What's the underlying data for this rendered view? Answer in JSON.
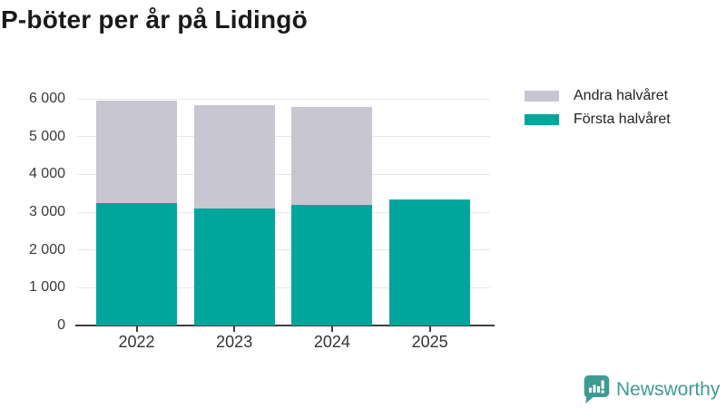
{
  "title": "P-böter per år på Lidingö",
  "legend": {
    "items": [
      {
        "label": "Andra halvåret",
        "color": "#c8c6d0"
      },
      {
        "label": "Första halvåret",
        "color": "#00a69c"
      }
    ]
  },
  "branding": {
    "logo_text": "Newsworthy",
    "logo_color": "#3e9b94"
  },
  "chart_data": {
    "type": "bar",
    "stacked": true,
    "title": "P-böter per år på Lidingö",
    "categories": [
      "2022",
      "2023",
      "2024",
      "2025"
    ],
    "series": [
      {
        "name": "Första halvåret",
        "color": "#00a69c",
        "values": [
          3250,
          3100,
          3190,
          3340
        ]
      },
      {
        "name": "Andra halvåret",
        "color": "#c8c6d0",
        "values": [
          2700,
          2740,
          2600,
          0
        ]
      }
    ],
    "totals": [
      5950,
      5840,
      5790,
      3340
    ],
    "xlabel": "",
    "ylabel": "",
    "ylim": [
      0,
      6000
    ],
    "y_ticks": [
      0,
      1000,
      2000,
      3000,
      4000,
      5000,
      6000
    ],
    "y_tick_labels": [
      "0",
      "1 000",
      "2 000",
      "3 000",
      "4 000",
      "5 000",
      "6 000"
    ],
    "grid": "horizontal",
    "legend_position": "top-right",
    "bar_order_note": "Första halvåret is the bottom (teal) segment, Andra halvåret the top (grey) segment"
  }
}
